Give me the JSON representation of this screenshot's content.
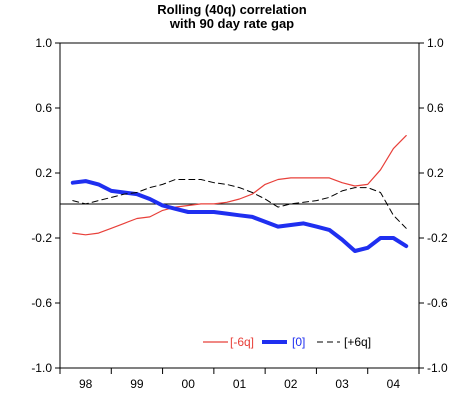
{
  "chart_data": {
    "type": "line",
    "title": "Rolling (40q) correlation\nwith 90 day rate gap",
    "title_lines": [
      "Rolling (40q) correlation",
      "with 90 day rate gap"
    ],
    "x_categories": [
      "98",
      "99",
      "00",
      "01",
      "02",
      "03",
      "04"
    ],
    "y_ticks": [
      "1.0",
      "0.6",
      "0.2",
      "-0.2",
      "-0.6",
      "-1.0"
    ],
    "ylim": [
      -1.0,
      1.0
    ],
    "xlim": [
      1998.0,
      2005.0
    ],
    "zero_line": true,
    "secondary_y_mirrored": true,
    "legend_position": "bottom-right",
    "series": [
      {
        "name": "[-6q]",
        "color": "#e8403a",
        "style": "solid-thin",
        "x": [
          1998.25,
          1998.5,
          1998.75,
          1999.0,
          1999.25,
          1999.5,
          1999.75,
          2000.0,
          2000.25,
          2000.5,
          2000.75,
          2001.0,
          2001.25,
          2001.5,
          2001.75,
          2002.0,
          2002.25,
          2002.5,
          2002.75,
          2003.0,
          2003.25,
          2003.5,
          2003.75,
          2004.0,
          2004.25,
          2004.5,
          2004.75
        ],
        "y": [
          -0.17,
          -0.18,
          -0.17,
          -0.14,
          -0.11,
          -0.08,
          -0.07,
          -0.03,
          -0.01,
          0.0,
          0.01,
          0.01,
          0.02,
          0.04,
          0.07,
          0.13,
          0.16,
          0.17,
          0.17,
          0.17,
          0.17,
          0.14,
          0.12,
          0.13,
          0.22,
          0.35,
          0.43
        ]
      },
      {
        "name": "[0]",
        "color": "#1f2ff0",
        "style": "solid-thick",
        "x": [
          1998.25,
          1998.5,
          1998.75,
          1999.0,
          1999.25,
          1999.5,
          1999.75,
          2000.0,
          2000.25,
          2000.5,
          2000.75,
          2001.0,
          2001.25,
          2001.5,
          2001.75,
          2002.0,
          2002.25,
          2002.5,
          2002.75,
          2003.0,
          2003.25,
          2003.5,
          2003.75,
          2004.0,
          2004.25,
          2004.5,
          2004.75
        ],
        "y": [
          0.14,
          0.15,
          0.13,
          0.09,
          0.08,
          0.07,
          0.04,
          0.0,
          -0.02,
          -0.04,
          -0.04,
          -0.04,
          -0.05,
          -0.06,
          -0.07,
          -0.1,
          -0.13,
          -0.12,
          -0.11,
          -0.13,
          -0.15,
          -0.21,
          -0.28,
          -0.26,
          -0.2,
          -0.2,
          -0.25
        ]
      },
      {
        "name": "[+6q]",
        "color": "#000000",
        "style": "dashed",
        "x": [
          1998.25,
          1998.5,
          1998.75,
          1999.0,
          1999.25,
          1999.5,
          1999.75,
          2000.0,
          2000.25,
          2000.5,
          2000.75,
          2001.0,
          2001.25,
          2001.5,
          2001.75,
          2002.0,
          2002.25,
          2002.5,
          2002.75,
          2003.0,
          2003.25,
          2003.5,
          2003.75,
          2004.0,
          2004.25,
          2004.5,
          2004.75
        ],
        "y": [
          0.03,
          0.01,
          0.03,
          0.05,
          0.07,
          0.08,
          0.11,
          0.13,
          0.16,
          0.16,
          0.16,
          0.14,
          0.13,
          0.11,
          0.08,
          0.04,
          -0.01,
          0.01,
          0.02,
          0.03,
          0.05,
          0.09,
          0.11,
          0.11,
          0.08,
          -0.06,
          -0.14
        ]
      }
    ]
  }
}
